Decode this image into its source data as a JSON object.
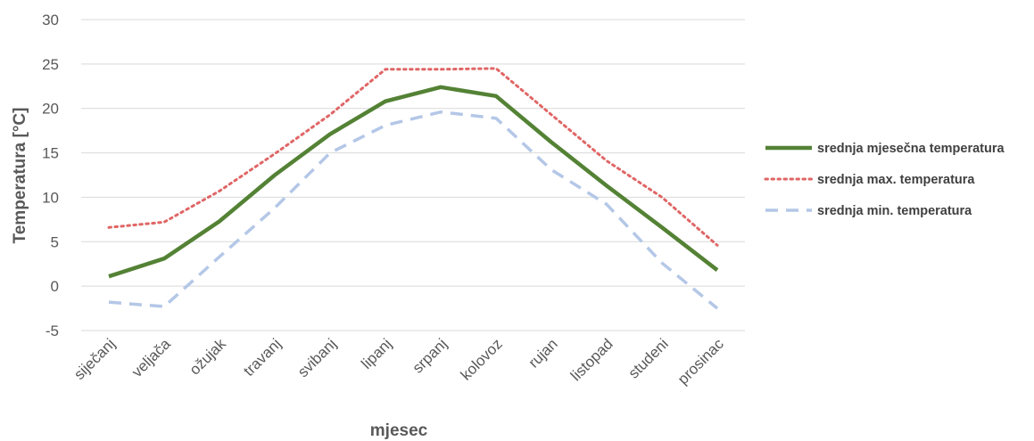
{
  "chart_data": {
    "type": "line",
    "xlabel": "mjesec",
    "ylabel": "Temperatura [°C]",
    "ylim": [
      -5,
      30
    ],
    "yticks": [
      -5,
      0,
      5,
      10,
      15,
      20,
      25,
      30
    ],
    "grid": true,
    "legend_position": "right",
    "categories": [
      "siječanj",
      "veljača",
      "ožujak",
      "travanj",
      "svibanj",
      "lipanj",
      "srpanj",
      "kolovoz",
      "rujan",
      "listopad",
      "studeni",
      "prosinac"
    ],
    "series": [
      {
        "name": "srednja mjesečna temperatura",
        "style": "solid",
        "color": "#548235",
        "values": [
          1.1,
          3.1,
          7.3,
          12.5,
          17.1,
          20.8,
          22.4,
          21.4,
          16.2,
          11.3,
          6.6,
          1.8
        ]
      },
      {
        "name": "srednja max. temperatura",
        "style": "dotted",
        "color": "#E06666",
        "values": [
          6.6,
          7.2,
          10.7,
          14.9,
          19.3,
          24.4,
          24.4,
          24.5,
          19.3,
          14.1,
          10.0,
          4.6
        ]
      },
      {
        "name": "srednja min. temperatura",
        "style": "dashed",
        "color": "#B4C7E7",
        "values": [
          -1.8,
          -2.3,
          3.3,
          8.8,
          15.0,
          18.1,
          19.6,
          18.9,
          13.1,
          9.2,
          2.6,
          -2.5
        ]
      }
    ]
  }
}
